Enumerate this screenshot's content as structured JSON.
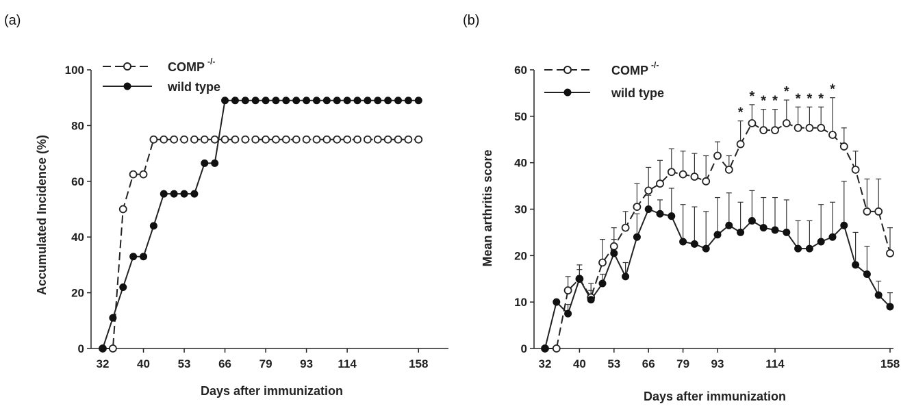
{
  "chart_data": [
    {
      "panel": "(a)",
      "type": "line",
      "xlabel": "Days after immunization",
      "ylabel": "Accumulated Incidence (%)",
      "ylim": [
        0,
        100
      ],
      "yticks": [
        "0",
        "20",
        "40",
        "60",
        "80",
        "100"
      ],
      "xticks": [
        "32",
        "40",
        "53",
        "66",
        "79",
        "93",
        "114",
        "158"
      ],
      "legend_placement": "top-left",
      "series": [
        {
          "name": "COMP",
          "name_sup": "-/-",
          "marker": "open-circle",
          "line": "dashed",
          "points": [
            [
              0,
              0
            ],
            [
              1,
              0
            ],
            [
              2,
              50
            ],
            [
              3,
              62.5
            ],
            [
              4,
              62.5
            ],
            [
              5,
              75
            ],
            [
              6,
              75
            ],
            [
              7,
              75
            ],
            [
              8,
              75
            ],
            [
              9,
              75
            ],
            [
              10,
              75
            ],
            [
              11,
              75
            ],
            [
              12,
              75
            ],
            [
              13,
              75
            ],
            [
              14,
              75
            ],
            [
              15,
              75
            ],
            [
              16,
              75
            ],
            [
              17,
              75
            ],
            [
              18,
              75
            ],
            [
              19,
              75
            ],
            [
              20,
              75
            ],
            [
              21,
              75
            ],
            [
              22,
              75
            ],
            [
              23,
              75
            ],
            [
              24,
              75
            ],
            [
              25,
              75
            ],
            [
              26,
              75
            ],
            [
              27,
              75
            ],
            [
              28,
              75
            ],
            [
              29,
              75
            ],
            [
              30,
              75
            ],
            [
              31,
              75
            ]
          ]
        },
        {
          "name": "wild type",
          "marker": "filled-circle",
          "line": "solid",
          "points": [
            [
              0,
              0
            ],
            [
              1,
              11
            ],
            [
              2,
              22
            ],
            [
              3,
              33
            ],
            [
              4,
              33
            ],
            [
              5,
              44
            ],
            [
              6,
              55.5
            ],
            [
              7,
              55.5
            ],
            [
              8,
              55.5
            ],
            [
              9,
              55.5
            ],
            [
              10,
              66.5
            ],
            [
              11,
              66.5
            ],
            [
              12,
              89
            ],
            [
              13,
              89
            ],
            [
              14,
              89
            ],
            [
              15,
              89
            ],
            [
              16,
              89
            ],
            [
              17,
              89
            ],
            [
              18,
              89
            ],
            [
              19,
              89
            ],
            [
              20,
              89
            ],
            [
              21,
              89
            ],
            [
              22,
              89
            ],
            [
              23,
              89
            ],
            [
              24,
              89
            ],
            [
              25,
              89
            ],
            [
              26,
              89
            ],
            [
              27,
              89
            ],
            [
              28,
              89
            ],
            [
              29,
              89
            ],
            [
              30,
              89
            ],
            [
              31,
              89
            ]
          ]
        }
      ]
    },
    {
      "panel": "(b)",
      "type": "line",
      "xlabel": "Days after immunization",
      "ylabel": "Mean arthritis score",
      "ylim": [
        0,
        60
      ],
      "yticks": [
        "0",
        "10",
        "20",
        "30",
        "40",
        "50",
        "60"
      ],
      "xticks": [
        "32",
        "40",
        "53",
        "66",
        "79",
        "93",
        "114",
        "158"
      ],
      "legend_placement": "top-left",
      "annotations": [
        "*",
        "*",
        "*",
        "*",
        "*",
        "*",
        "*",
        "*",
        "*"
      ],
      "series": [
        {
          "name": "COMP",
          "name_sup": "-/-",
          "marker": "open-circle",
          "line": "dashed",
          "points": [
            [
              0,
              0,
              0
            ],
            [
              1,
              0,
              0
            ],
            [
              2,
              12.5,
              3
            ],
            [
              3,
              15,
              3
            ],
            [
              4,
              11,
              3
            ],
            [
              5,
              18.5,
              5
            ],
            [
              6,
              22,
              4
            ],
            [
              7,
              26,
              3.5
            ],
            [
              8,
              30.5,
              5
            ],
            [
              9,
              34,
              5
            ],
            [
              10,
              35.5,
              5
            ],
            [
              11,
              38,
              5
            ],
            [
              12,
              37.5,
              5
            ],
            [
              13,
              37,
              5
            ],
            [
              14,
              36,
              5.5
            ],
            [
              15,
              41.5,
              3
            ],
            [
              16,
              38.5,
              3
            ],
            [
              17,
              44,
              5
            ],
            [
              18,
              48.5,
              4
            ],
            [
              19,
              47,
              4.5
            ],
            [
              20,
              47,
              4.5
            ],
            [
              21,
              48.5,
              5
            ],
            [
              22,
              47.5,
              4.5
            ],
            [
              23,
              47.5,
              4.5
            ],
            [
              24,
              47.5,
              4.5
            ],
            [
              25,
              46,
              8
            ],
            [
              26,
              43.5,
              4
            ],
            [
              27,
              38.5,
              4
            ],
            [
              28,
              29.5,
              7
            ],
            [
              29,
              29.5,
              7
            ],
            [
              30,
              20.5,
              5.5
            ]
          ]
        },
        {
          "name": "wild type",
          "marker": "filled-circle",
          "line": "solid",
          "points": [
            [
              0,
              0,
              0
            ],
            [
              1,
              10,
              0
            ],
            [
              2,
              7.5,
              2
            ],
            [
              3,
              15,
              2
            ],
            [
              4,
              10.5,
              2
            ],
            [
              5,
              14,
              2
            ],
            [
              6,
              20.5,
              3
            ],
            [
              7,
              15.5,
              3
            ],
            [
              8,
              24,
              5
            ],
            [
              9,
              30,
              3
            ],
            [
              10,
              29,
              3
            ],
            [
              11,
              28.5,
              6
            ],
            [
              12,
              23,
              8
            ],
            [
              13,
              22.5,
              8
            ],
            [
              14,
              21.5,
              8
            ],
            [
              15,
              24.5,
              8
            ],
            [
              16,
              26.5,
              7
            ],
            [
              17,
              25,
              6.5
            ],
            [
              18,
              27.5,
              6.5
            ],
            [
              19,
              26,
              6.5
            ],
            [
              20,
              25.5,
              7
            ],
            [
              21,
              25,
              7
            ],
            [
              22,
              21.5,
              6
            ],
            [
              23,
              21.5,
              6
            ],
            [
              24,
              23,
              8
            ],
            [
              25,
              24,
              7.5
            ],
            [
              26,
              26.5,
              9.5
            ],
            [
              27,
              18,
              7
            ],
            [
              28,
              16,
              6
            ],
            [
              29,
              11.5,
              3
            ],
            [
              30,
              9,
              3
            ]
          ]
        }
      ]
    }
  ]
}
